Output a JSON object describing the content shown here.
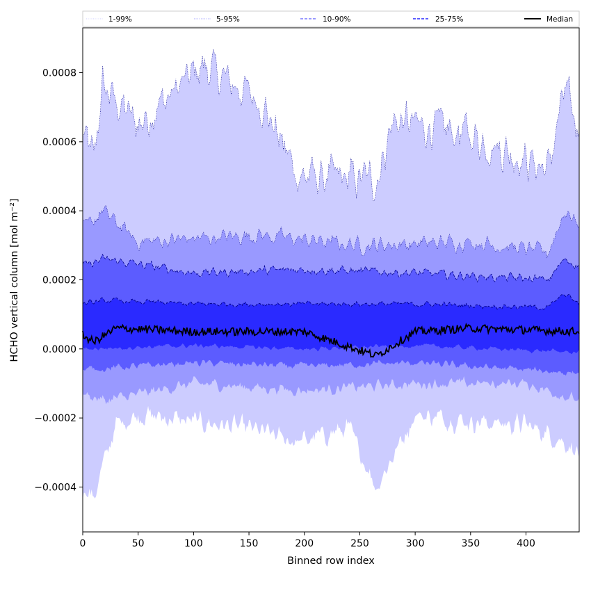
{
  "chart_data": {
    "type": "area",
    "xlabel": "Binned row index",
    "ylabel": "HCHO vertical column [mol m⁻²]",
    "xlim": [
      0,
      448
    ],
    "ylim": [
      -0.00053,
      0.00093
    ],
    "x_ticks": [
      0,
      50,
      100,
      150,
      200,
      250,
      300,
      350,
      400
    ],
    "x_tick_labels": [
      "0",
      "50",
      "100",
      "150",
      "200",
      "250",
      "300",
      "350",
      "400"
    ],
    "y_ticks": [
      -0.0004,
      -0.0002,
      0.0,
      0.0002,
      0.0004,
      0.0006,
      0.0008
    ],
    "y_tick_labels": [
      "−0.0004",
      "−0.0002",
      "0.0000",
      "0.0002",
      "0.0004",
      "0.0006",
      "0.0008"
    ],
    "n_points": 449,
    "legend_position": "top, outside plot, single row",
    "colors": {
      "band_1_99": "#ccccff",
      "band_5_95": "#9999ff",
      "band_10_90": "#5c5cff",
      "band_25_75": "#2a2aff",
      "upper_lines": "#00008b",
      "median": "#000000"
    },
    "series": [
      {
        "name": "1-99%",
        "percentile_low": 1,
        "percentile_high": 99,
        "style": "dotted",
        "lower_profile": [
          [
            0,
            -0.0004
          ],
          [
            10,
            -0.00043
          ],
          [
            20,
            -0.00032
          ],
          [
            30,
            -0.00022
          ],
          [
            50,
            -0.00019
          ],
          [
            100,
            -0.00021
          ],
          [
            150,
            -0.00023
          ],
          [
            195,
            -0.00027
          ],
          [
            240,
            -0.00023
          ],
          [
            265,
            -0.0004
          ],
          [
            300,
            -0.00019
          ],
          [
            350,
            -0.00021
          ],
          [
            400,
            -0.00022
          ],
          [
            430,
            -0.00026
          ],
          [
            448,
            -0.0003
          ]
        ],
        "upper_profile": [
          [
            0,
            0.00062
          ],
          [
            10,
            0.00055
          ],
          [
            18,
            0.00076
          ],
          [
            50,
            0.00065
          ],
          [
            108,
            0.00082
          ],
          [
            160,
            0.00072
          ],
          [
            195,
            0.0005
          ],
          [
            265,
            0.00049
          ],
          [
            280,
            0.00066
          ],
          [
            350,
            0.00062
          ],
          [
            420,
            0.00052
          ],
          [
            435,
            0.00075
          ],
          [
            448,
            0.00062
          ]
        ]
      },
      {
        "name": "5-95%",
        "percentile_low": 5,
        "percentile_high": 95,
        "style": "dotted",
        "lower_profile": [
          [
            0,
            -0.00013
          ],
          [
            20,
            -0.00015
          ],
          [
            100,
            -0.0001
          ],
          [
            200,
            -0.00012
          ],
          [
            300,
            -0.0001
          ],
          [
            400,
            -0.0001
          ],
          [
            448,
            -0.00015
          ]
        ],
        "upper_profile": [
          [
            0,
            0.00034
          ],
          [
            18,
            0.0004
          ],
          [
            50,
            0.00031
          ],
          [
            160,
            0.00033
          ],
          [
            250,
            0.0003
          ],
          [
            350,
            0.00031
          ],
          [
            420,
            0.00028
          ],
          [
            435,
            0.0004
          ],
          [
            448,
            0.00036
          ]
        ]
      },
      {
        "name": "10-90%",
        "percentile_low": 10,
        "percentile_high": 90,
        "style": "dashed",
        "lower_profile": [
          [
            0,
            -6e-05
          ],
          [
            100,
            -4e-05
          ],
          [
            200,
            -5e-05
          ],
          [
            300,
            -4e-05
          ],
          [
            448,
            -7e-05
          ]
        ],
        "upper_profile": [
          [
            0,
            0.00024
          ],
          [
            20,
            0.00026
          ],
          [
            100,
            0.00022
          ],
          [
            200,
            0.00023
          ],
          [
            300,
            0.00022
          ],
          [
            420,
            0.0002
          ],
          [
            435,
            0.00026
          ],
          [
            448,
            0.00024
          ]
        ]
      },
      {
        "name": "25-75%",
        "percentile_low": 25,
        "percentile_high": 75,
        "style": "dashed",
        "lower_profile": [
          [
            0,
            0.0
          ],
          [
            100,
            1e-05
          ],
          [
            200,
            0.0
          ],
          [
            300,
            1e-05
          ],
          [
            448,
            -1e-05
          ]
        ],
        "upper_profile": [
          [
            0,
            0.00013
          ],
          [
            20,
            0.00014
          ],
          [
            100,
            0.00013
          ],
          [
            200,
            0.00013
          ],
          [
            300,
            0.00013
          ],
          [
            420,
            0.00012
          ],
          [
            435,
            0.00016
          ],
          [
            448,
            0.00013
          ]
        ]
      },
      {
        "name": "Median",
        "style": "solid",
        "profile": [
          [
            0,
            4e-05
          ],
          [
            10,
            2e-05
          ],
          [
            30,
            6e-05
          ],
          [
            100,
            5e-05
          ],
          [
            200,
            5e-05
          ],
          [
            265,
            -2e-05
          ],
          [
            300,
            5e-05
          ],
          [
            350,
            6e-05
          ],
          [
            448,
            5e-05
          ]
        ]
      }
    ]
  }
}
